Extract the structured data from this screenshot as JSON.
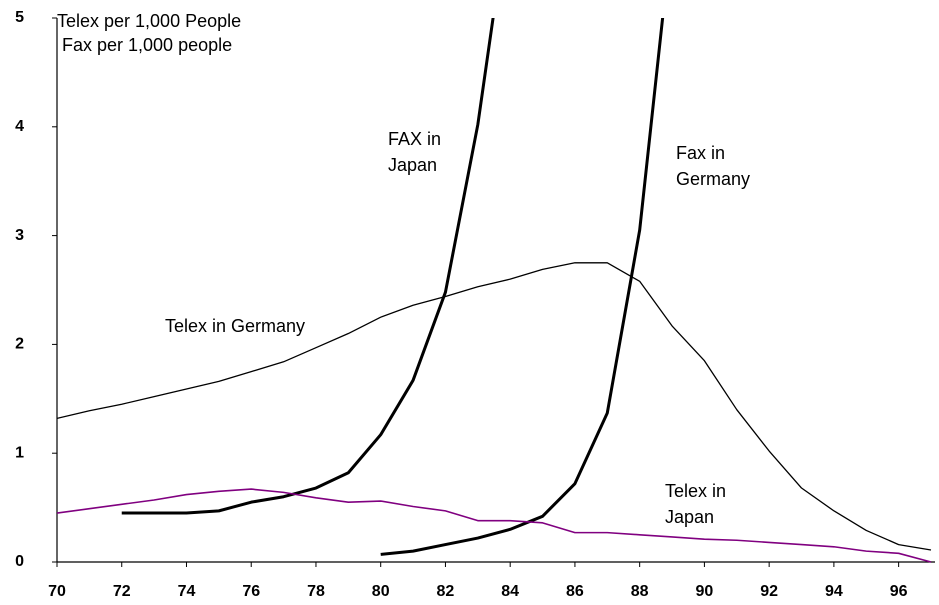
{
  "chart_data": {
    "type": "line",
    "title": "Telex per 1,000 People",
    "subtitle": "Fax per 1,000 people",
    "x": [
      70,
      71,
      72,
      73,
      74,
      75,
      76,
      77,
      78,
      79,
      80,
      81,
      82,
      83,
      84,
      85,
      86,
      87,
      88,
      89,
      90,
      91,
      92,
      93,
      94,
      95,
      96,
      97
    ],
    "xlim": [
      70,
      97
    ],
    "xticks": [
      70,
      72,
      74,
      76,
      78,
      80,
      82,
      84,
      86,
      88,
      90,
      92,
      94,
      96
    ],
    "ylim": [
      0,
      5
    ],
    "yticks": [
      0,
      1,
      2,
      3,
      4,
      5
    ],
    "grid": false,
    "series": [
      {
        "name": "FAX in Japan",
        "color": "#000000",
        "line_width": 3,
        "values": [
          null,
          null,
          0.45,
          0.45,
          0.45,
          0.47,
          0.55,
          0.6,
          0.68,
          0.82,
          1.17,
          1.67,
          2.48,
          4.02,
          6.1,
          null,
          null,
          null,
          null,
          null,
          null,
          null,
          null,
          null,
          null,
          null,
          null,
          null
        ]
      },
      {
        "name": "Fax in Germany",
        "color": "#000000",
        "line_width": 3,
        "values": [
          null,
          null,
          null,
          null,
          null,
          null,
          null,
          null,
          null,
          null,
          0.07,
          0.1,
          0.16,
          0.22,
          0.3,
          0.42,
          0.72,
          1.37,
          3.05,
          5.8,
          null,
          null,
          null,
          null,
          null,
          null,
          null,
          null
        ]
      },
      {
        "name": "Telex in Germany",
        "color": "#000000",
        "line_width": 1.3,
        "values": [
          1.32,
          1.39,
          1.45,
          1.52,
          1.59,
          1.66,
          1.75,
          1.84,
          1.97,
          2.1,
          2.25,
          2.36,
          2.44,
          2.53,
          2.6,
          2.69,
          2.75,
          2.75,
          2.58,
          2.17,
          1.85,
          1.4,
          1.02,
          0.68,
          0.47,
          0.29,
          0.16,
          0.11
        ]
      },
      {
        "name": "Telex in Japan",
        "color": "#800080",
        "line_width": 1.6,
        "values": [
          0.45,
          0.49,
          0.53,
          0.57,
          0.62,
          0.65,
          0.67,
          0.64,
          0.59,
          0.55,
          0.56,
          0.51,
          0.47,
          0.38,
          0.38,
          0.36,
          0.27,
          0.27,
          0.25,
          0.23,
          0.21,
          0.2,
          0.18,
          0.16,
          0.14,
          0.1,
          0.08,
          0.0
        ]
      }
    ]
  }
}
